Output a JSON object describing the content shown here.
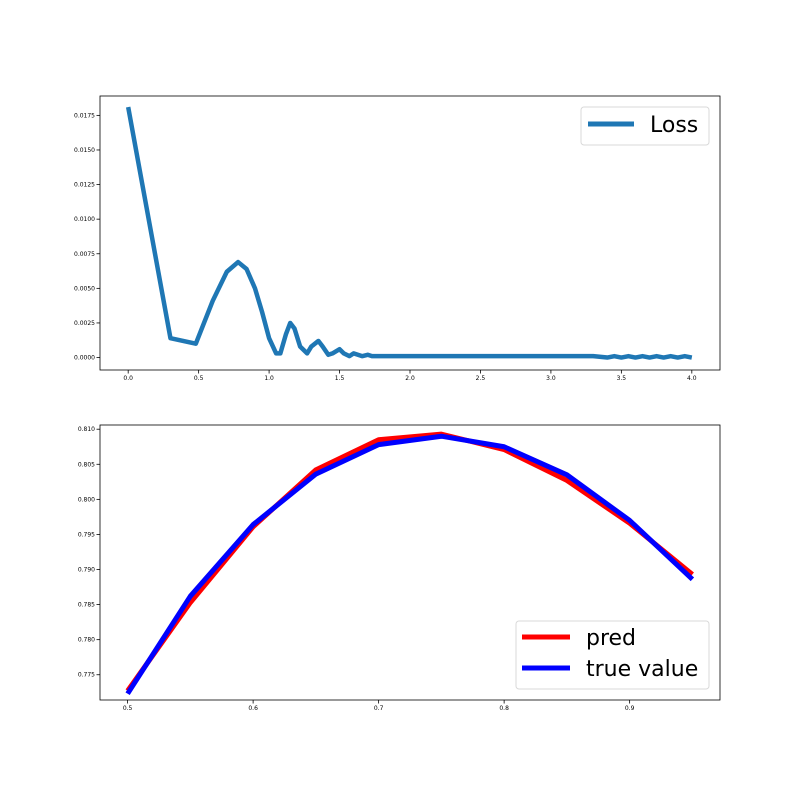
{
  "chart_data": [
    {
      "type": "line",
      "title": "",
      "xlabel": "",
      "ylabel": "",
      "xlim": [
        -0.2,
        4.2
      ],
      "ylim": [
        -0.0009,
        0.0189
      ],
      "xticks": [
        0.0,
        0.5,
        1.0,
        1.5,
        2.0,
        2.5,
        3.0,
        3.5,
        4.0
      ],
      "xtick_labels": [
        "0.0",
        "0.5",
        "1.0",
        "1.5",
        "2.0",
        "2.5",
        "3.0",
        "3.5",
        "4.0"
      ],
      "yticks": [
        0.0,
        0.0025,
        0.005,
        0.0075,
        0.01,
        0.0125,
        0.015,
        0.0175
      ],
      "ytick_labels": [
        "0.0000",
        "0.0025",
        "0.0050",
        "0.0075",
        "0.0100",
        "0.0125",
        "0.0150",
        "0.0175"
      ],
      "grid": false,
      "legend_position": "top-right",
      "series": [
        {
          "name": "Loss",
          "color": "#1f77b4",
          "x": [
            0.0,
            0.3,
            0.48,
            0.6,
            0.7,
            0.78,
            0.84,
            0.9,
            0.95,
            1.0,
            1.05,
            1.08,
            1.12,
            1.15,
            1.18,
            1.22,
            1.27,
            1.3,
            1.35,
            1.38,
            1.42,
            1.45,
            1.5,
            1.53,
            1.57,
            1.6,
            1.63,
            1.66,
            1.7,
            1.73,
            1.75,
            1.8,
            2.0,
            2.5,
            3.0,
            3.3,
            3.4,
            3.45,
            3.5,
            3.55,
            3.6,
            3.65,
            3.7,
            3.75,
            3.8,
            3.85,
            3.9,
            3.95,
            4.0
          ],
          "y": [
            0.0181,
            0.0014,
            0.001,
            0.0041,
            0.0062,
            0.0069,
            0.0064,
            0.005,
            0.0033,
            0.0014,
            0.0003,
            0.0003,
            0.0017,
            0.0025,
            0.0021,
            0.0008,
            0.0003,
            0.0008,
            0.0012,
            0.0008,
            0.0002,
            0.0003,
            0.0006,
            0.0003,
            0.0001,
            0.0003,
            0.0002,
            0.0001,
            0.0002,
            0.0001,
            0.0001,
            0.0001,
            0.0001,
            0.0001,
            0.0001,
            0.0001,
            0.0,
            0.0001,
            0.0,
            0.0001,
            0.0,
            0.0001,
            0.0,
            0.0001,
            0.0,
            0.0001,
            0.0,
            0.0001,
            0.0
          ]
        }
      ]
    },
    {
      "type": "line",
      "title": "",
      "xlabel": "",
      "ylabel": "",
      "xlim": [
        0.478,
        0.972
      ],
      "ylim": [
        0.7714,
        0.8106
      ],
      "xticks": [
        0.5,
        0.6,
        0.7,
        0.8,
        0.9
      ],
      "xtick_labels": [
        "0.5",
        "0.6",
        "0.7",
        "0.8",
        "0.9"
      ],
      "yticks": [
        0.775,
        0.78,
        0.785,
        0.79,
        0.795,
        0.8,
        0.805,
        0.81
      ],
      "ytick_labels": [
        "0.775",
        "0.780",
        "0.785",
        "0.790",
        "0.795",
        "0.800",
        "0.805",
        "0.810"
      ],
      "grid": false,
      "legend_position": "bottom-right",
      "x": [
        0.5,
        0.55,
        0.6,
        0.65,
        0.7,
        0.75,
        0.8,
        0.85,
        0.9,
        0.95
      ],
      "series": [
        {
          "name": "pred",
          "color": "#ff0000",
          "values": [
            0.7727,
            0.7853,
            0.7961,
            0.8042,
            0.8085,
            0.8093,
            0.8071,
            0.8027,
            0.7966,
            0.7893
          ]
        },
        {
          "name": "true value",
          "color": "#0000ff",
          "values": [
            0.7723,
            0.7862,
            0.7964,
            0.8036,
            0.8078,
            0.809,
            0.8075,
            0.8035,
            0.797,
            0.7886
          ]
        }
      ]
    }
  ]
}
